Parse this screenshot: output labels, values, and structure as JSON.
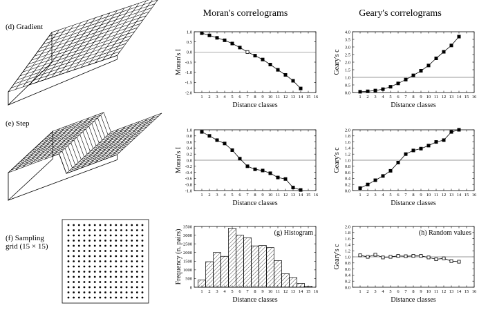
{
  "headers": {
    "moran": "Moran's correlograms",
    "geary": "Geary's correlograms"
  },
  "panel_labels": {
    "d": "(d) Gradient",
    "e": "(e) Step",
    "f_line1": "(f) Sampling",
    "f_line2": "grid (15 × 15)"
  },
  "chart_data": [
    {
      "id": "moran-gradient",
      "type": "line",
      "xlabel": "Distance classes",
      "ylabel": "Moran's I",
      "xlim": [
        0,
        16
      ],
      "ylim": [
        -2.0,
        1.0
      ],
      "yticks_step": 0.5,
      "x": [
        1,
        2,
        3,
        4,
        5,
        6,
        7,
        8,
        9,
        10,
        11,
        12,
        13,
        14
      ],
      "values": [
        0.93,
        0.82,
        0.7,
        0.58,
        0.42,
        0.22,
        0.0,
        -0.18,
        -0.37,
        -0.62,
        -0.88,
        -1.13,
        -1.42,
        -1.8
      ],
      "open_points": [
        7
      ],
      "reference_line": 0
    },
    {
      "id": "geary-gradient",
      "type": "line",
      "xlabel": "Distance classes",
      "ylabel": "Geary's c",
      "xlim": [
        0,
        16
      ],
      "ylim": [
        0,
        4.0
      ],
      "yticks_step": 0.5,
      "x": [
        1,
        2,
        3,
        4,
        5,
        6,
        7,
        8,
        9,
        10,
        11,
        12,
        13,
        14
      ],
      "values": [
        0.05,
        0.08,
        0.13,
        0.22,
        0.38,
        0.6,
        0.85,
        1.13,
        1.43,
        1.78,
        2.25,
        2.68,
        3.1,
        3.68
      ],
      "open_points": [],
      "reference_line": 1
    },
    {
      "id": "moran-step",
      "type": "line",
      "xlabel": "Distance classes",
      "ylabel": "Moran's I",
      "xlim": [
        0,
        16
      ],
      "ylim": [
        -1.0,
        1.0
      ],
      "yticks_step": 0.2,
      "x": [
        1,
        2,
        3,
        4,
        5,
        6,
        7,
        8,
        9,
        10,
        11,
        12,
        13,
        14
      ],
      "values": [
        0.93,
        0.8,
        0.66,
        0.55,
        0.33,
        0.05,
        -0.2,
        -0.3,
        -0.34,
        -0.43,
        -0.57,
        -0.62,
        -0.9,
        -0.98
      ],
      "open_points": [],
      "reference_line": 0
    },
    {
      "id": "geary-step",
      "type": "line",
      "xlabel": "Distance classes",
      "ylabel": "Geary's c",
      "xlim": [
        0,
        16
      ],
      "ylim": [
        0,
        2.0
      ],
      "yticks_step": 0.2,
      "x": [
        1,
        2,
        3,
        4,
        5,
        6,
        7,
        8,
        9,
        10,
        11,
        12,
        13,
        14
      ],
      "values": [
        0.08,
        0.2,
        0.34,
        0.48,
        0.65,
        0.92,
        1.2,
        1.32,
        1.38,
        1.48,
        1.6,
        1.66,
        1.93,
        2.0
      ],
      "open_points": [],
      "reference_line": 1
    },
    {
      "id": "histogram",
      "type": "bar",
      "title": "(g) Histogram",
      "xlabel": "Distance classes",
      "ylabel": "Frequency (n. pairs)",
      "xlim": [
        0,
        16
      ],
      "ylim": [
        0,
        3500
      ],
      "yticks_step": 500,
      "categories": [
        1,
        2,
        3,
        4,
        5,
        6,
        7,
        8,
        9,
        10,
        11,
        12,
        13,
        14,
        15
      ],
      "values": [
        420,
        1470,
        2000,
        1780,
        3400,
        3000,
        2850,
        2380,
        2400,
        2280,
        1530,
        780,
        560,
        220,
        60
      ]
    },
    {
      "id": "geary-random",
      "type": "line",
      "title": "(h) Random values",
      "xlabel": "Distance classes",
      "ylabel": "Geary's c",
      "xlim": [
        0,
        16
      ],
      "ylim": [
        0,
        2.0
      ],
      "yticks_step": 0.2,
      "x": [
        1,
        2,
        3,
        4,
        5,
        6,
        7,
        8,
        9,
        10,
        11,
        12,
        13,
        14
      ],
      "values": [
        1.05,
        1.0,
        1.07,
        0.98,
        1.0,
        1.03,
        1.02,
        1.03,
        1.03,
        0.98,
        0.92,
        0.95,
        0.86,
        0.84
      ],
      "open_points": [
        1,
        2,
        3,
        4,
        5,
        6,
        7,
        8,
        9,
        10,
        11,
        12,
        13,
        14
      ],
      "reference_line": 1
    }
  ],
  "sampling_grid": {
    "rows": 15,
    "cols": 15
  }
}
